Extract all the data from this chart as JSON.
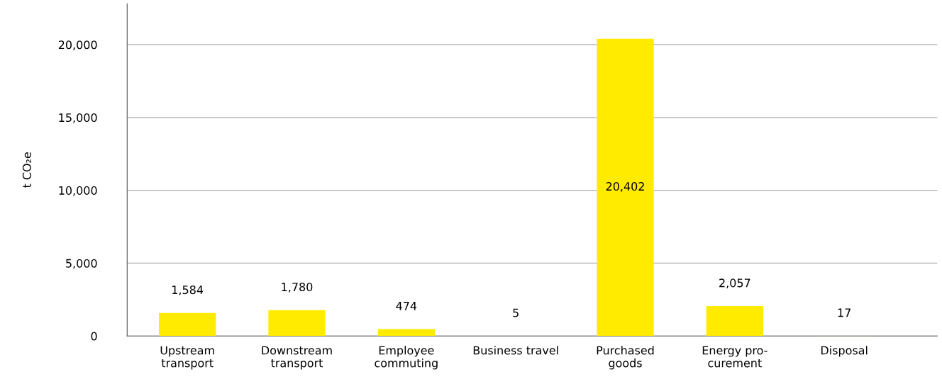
{
  "chart_data": {
    "type": "bar",
    "ylabel": "t CO₂e",
    "categories": [
      "Upstream\ntransport",
      "Downstream\ntransport",
      "Employee\ncommuting",
      "Business travel",
      "Purchased\ngoods",
      "Energy pro-\ncurement",
      "Disposal"
    ],
    "values": [
      1584,
      1780,
      474,
      5,
      20402,
      2057,
      17
    ],
    "value_labels": [
      "1,584",
      "1,780",
      "474",
      "5",
      "20,402",
      "2,057",
      "17"
    ],
    "color": "#ffeb00",
    "ylim": [
      0,
      22800
    ],
    "yticks": [
      0,
      {
        "value": 5000,
        "label": "5,000"
      },
      {
        "value": 10000,
        "label": "10,000"
      },
      {
        "value": 15000,
        "label": "15,000"
      },
      {
        "value": 20000,
        "label": "20,000"
      }
    ],
    "grid": "y",
    "legend": false
  }
}
